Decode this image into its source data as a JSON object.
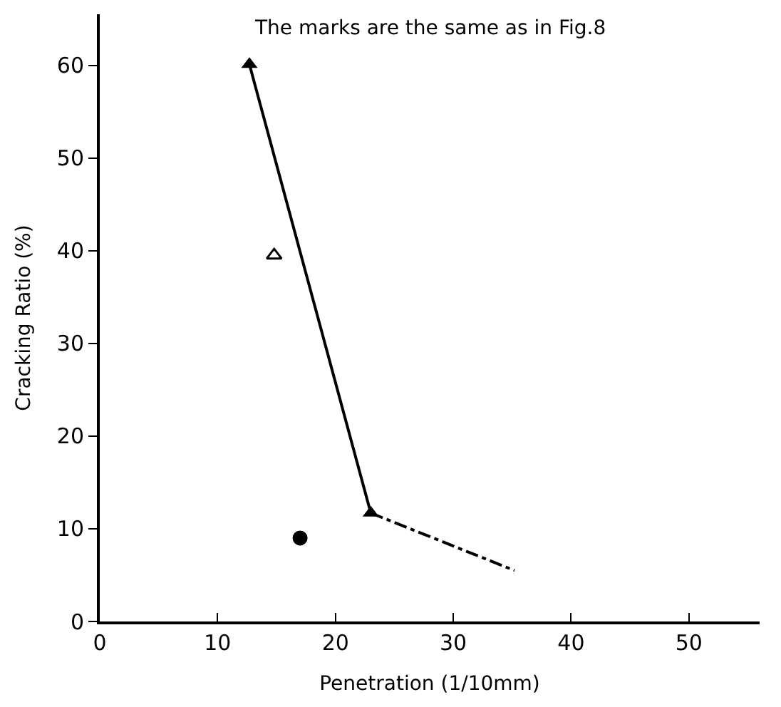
{
  "chart_data": {
    "type": "line",
    "xlabel": "Penetration (1/10mm)",
    "ylabel": "Cracking Ratio (%)",
    "annotations": [
      "The marks are the same as in Fig.8"
    ],
    "xlim": [
      0,
      56
    ],
    "xticks": [
      0,
      10,
      20,
      30,
      40,
      50
    ],
    "ylim": [
      0,
      65.5
    ],
    "yticks": [
      0,
      10,
      20,
      30,
      40,
      50,
      60
    ],
    "series": [
      {
        "color": "#000000",
        "x": [
          12.7,
          23.0
        ],
        "values": [
          60.1,
          11.7
        ],
        "marker": "triangle",
        "line_style": "solid"
      },
      {
        "color": "#000000",
        "x": [
          23.0,
          35.2
        ],
        "values": [
          11.7,
          5.5
        ],
        "marker": "none",
        "line_style": "dashed"
      },
      {
        "type": "scatter",
        "color": "#ffffff",
        "x": [
          14.8
        ],
        "values": [
          39.5
        ],
        "marker": "triangle"
      },
      {
        "type": "scatter",
        "color": "#000000",
        "x": [
          17.0
        ],
        "values": [
          9.0
        ],
        "marker": "circle"
      }
    ]
  }
}
